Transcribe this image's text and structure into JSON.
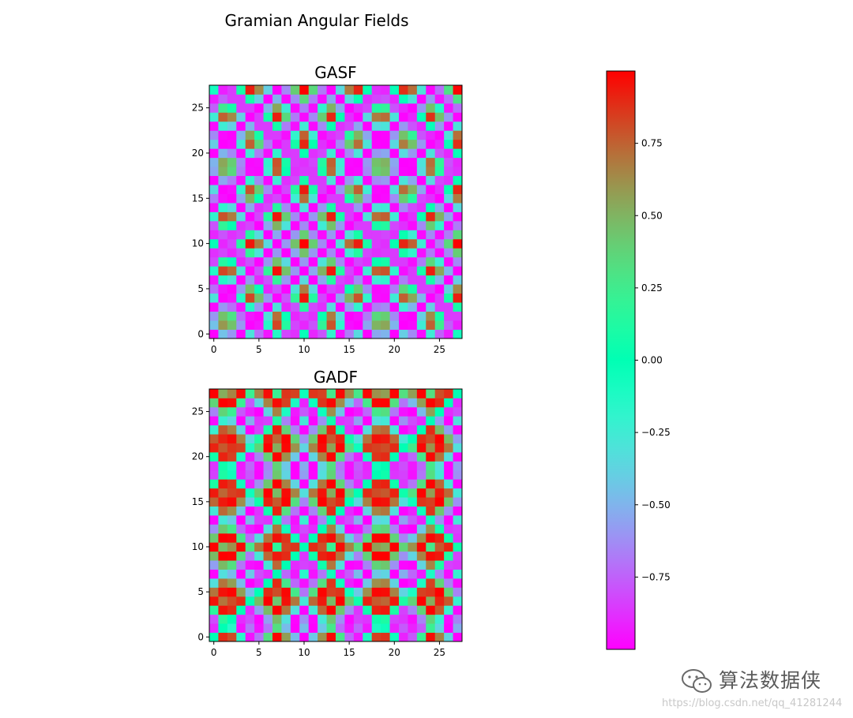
{
  "chart_data": {
    "type": "heatmap",
    "title": "Gramian Angular Fields",
    "colormap": "rainbow",
    "vmin": -1,
    "vmax": 1,
    "matrix_size": 28,
    "series_sin_period": 5.7,
    "subplots": [
      {
        "title": "GASF",
        "kind": "summation",
        "xlim": [
          -0.5,
          27.5
        ],
        "ylim": [
          -0.5,
          27.5
        ],
        "xticks": [
          0,
          5,
          10,
          15,
          20,
          25
        ],
        "yticks": [
          0,
          5,
          10,
          15,
          20,
          25
        ]
      },
      {
        "title": "GADF",
        "kind": "difference",
        "xlim": [
          -0.5,
          27.5
        ],
        "ylim": [
          -0.5,
          27.5
        ],
        "xticks": [
          0,
          5,
          10,
          15,
          20,
          25
        ],
        "yticks": [
          0,
          5,
          10,
          15,
          20,
          25
        ]
      }
    ],
    "colorbar": {
      "ticks": [
        0.75,
        0.5,
        0.25,
        0.0,
        -0.25,
        -0.5,
        -0.75
      ],
      "tick_labels": [
        "0.75",
        "0.50",
        "0.25",
        "0.00",
        "−0.25",
        "−0.50",
        "−0.75"
      ]
    }
  },
  "watermark": {
    "text": "算法数据侠",
    "url": "https://blog.csdn.net/qq_41281244"
  }
}
